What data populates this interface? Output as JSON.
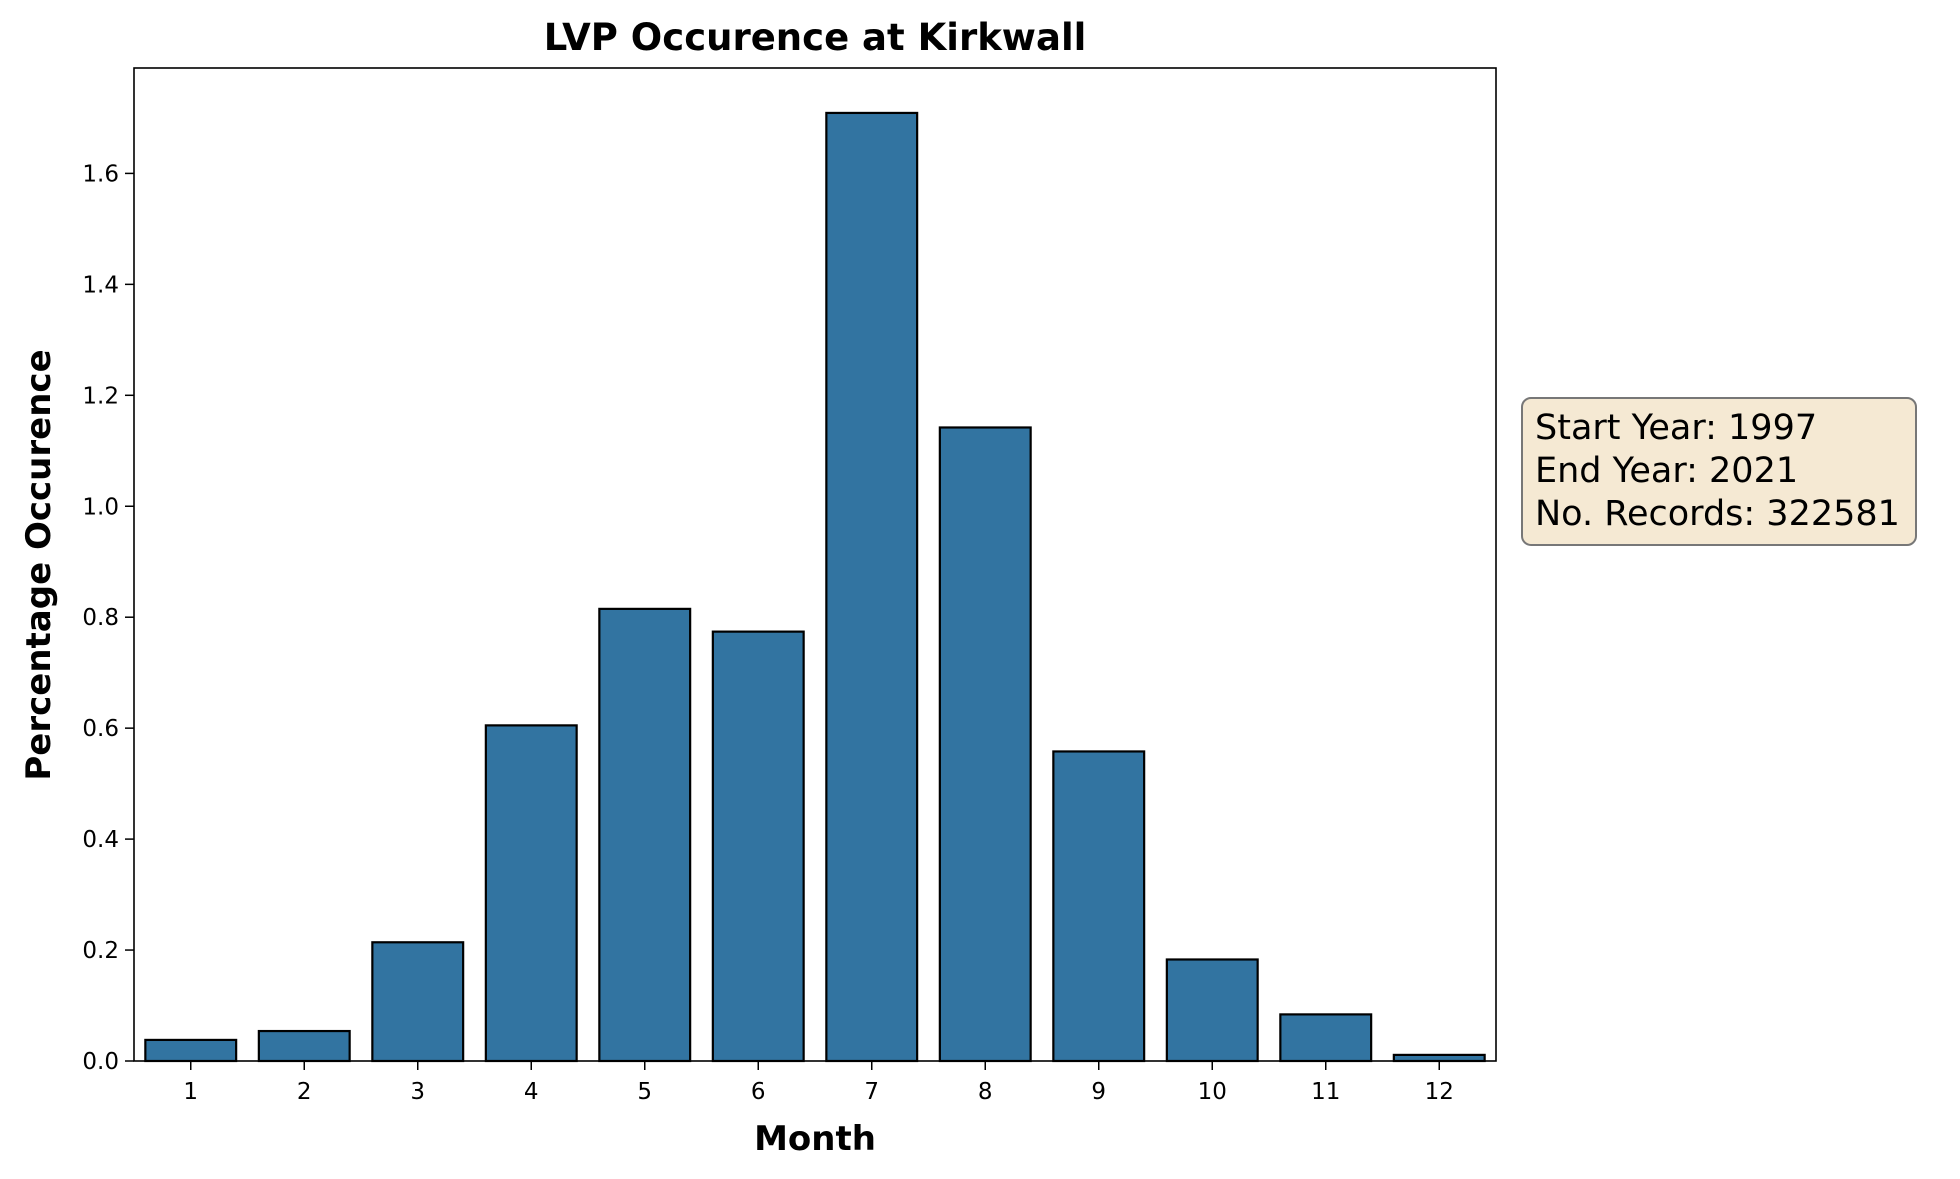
{
  "chart_data": {
    "type": "bar",
    "title": "LVP Occurence at Kirkwall",
    "xlabel": "Month",
    "ylabel": "Percentage Occurence",
    "categories": [
      "1",
      "2",
      "3",
      "4",
      "5",
      "6",
      "7",
      "8",
      "9",
      "10",
      "11",
      "12"
    ],
    "values": [
      0.038,
      0.054,
      0.214,
      0.605,
      0.815,
      0.774,
      1.709,
      1.142,
      0.558,
      0.183,
      0.084,
      0.011
    ],
    "ylim": [
      0,
      1.79
    ],
    "yticks": [
      "0.0",
      "0.2",
      "0.4",
      "0.6",
      "0.8",
      "1.0",
      "1.2",
      "1.4",
      "1.6"
    ],
    "grid": false,
    "bar_color": "#3274a1",
    "annotation": {
      "lines": [
        "Start Year: 1997",
        "End Year: 2021",
        "No. Records: 322581"
      ],
      "background": "#f5e9d3"
    }
  }
}
